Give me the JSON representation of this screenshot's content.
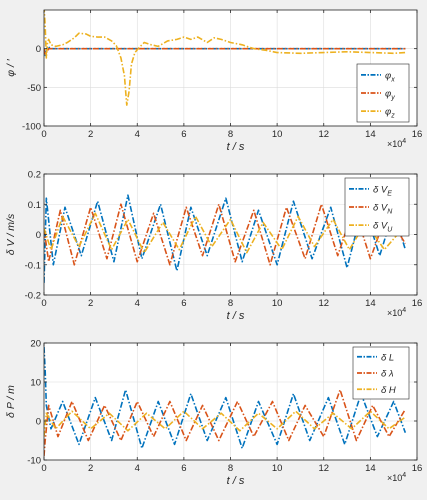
{
  "colors": {
    "figure_bg": "#f0f0f0",
    "axes_bg": "#ffffff",
    "grid": "#dcdcdc",
    "axis": "#262626",
    "series": [
      "#0072bd",
      "#d95319",
      "#edb120"
    ]
  },
  "chart_data": [
    {
      "type": "line",
      "ylabel": "φ / ′",
      "xlabel": "t  / s",
      "x_exponent": "×10",
      "x_exponent_power": "4",
      "xlim": [
        0,
        16
      ],
      "ylim": [
        -100,
        50
      ],
      "xticks": [
        "0",
        "2",
        "4",
        "6",
        "8",
        "10",
        "12",
        "14",
        "16"
      ],
      "yticks": [
        "-100",
        "-50",
        "0"
      ],
      "ytick_values": [
        -100,
        -50,
        0
      ],
      "grid": true,
      "legend_position": "lower-right",
      "series": [
        {
          "name": "φx",
          "label_main": "φ",
          "label_sub": "x",
          "style": "dash-dot",
          "x": [
            0,
            0.05,
            0.15,
            0.3,
            1,
            4,
            8,
            12,
            15.5
          ],
          "y": [
            0,
            -10,
            3,
            0,
            0,
            0,
            0,
            0,
            0
          ]
        },
        {
          "name": "φy",
          "label_main": "φ",
          "label_sub": "y",
          "style": "dash-dot",
          "x": [
            0,
            0.05,
            0.2,
            1,
            4,
            8,
            12,
            15.5
          ],
          "y": [
            0,
            -8,
            0,
            0,
            0,
            0,
            0,
            0
          ]
        },
        {
          "name": "φz",
          "label_main": "φ",
          "label_sub": "z",
          "style": "dash-dot",
          "x": [
            0,
            0.05,
            0.1,
            0.15,
            0.2,
            0.3,
            0.5,
            0.8,
            1,
            1.3,
            1.5,
            1.8,
            2,
            2.3,
            2.6,
            2.9,
            3.1,
            3.3,
            3.45,
            3.55,
            3.65,
            3.75,
            3.9,
            4.1,
            4.3,
            4.6,
            4.9,
            5.3,
            5.7,
            6,
            6.3,
            6.6,
            7,
            7.3,
            7.6,
            8,
            8.5,
            9,
            9.5,
            10,
            11,
            12,
            13,
            14,
            15,
            15.5
          ],
          "y": [
            55,
            30,
            -12,
            8,
            12,
            5,
            3,
            5,
            8,
            14,
            20,
            19,
            16,
            15,
            15,
            10,
            4,
            -12,
            -35,
            -73,
            -55,
            -20,
            -5,
            2,
            8,
            5,
            3,
            10,
            12,
            15,
            12,
            15,
            8,
            14,
            12,
            8,
            5,
            0,
            -2,
            -5,
            -6,
            -5,
            -4,
            -5,
            -6,
            -5
          ]
        }
      ]
    },
    {
      "type": "line",
      "ylabel": "δ V / m/s",
      "xlabel": "t  / s",
      "x_exponent": "×10",
      "x_exponent_power": "4",
      "xlim": [
        0,
        16
      ],
      "ylim": [
        -0.2,
        0.2
      ],
      "xticks": [
        "0",
        "2",
        "4",
        "6",
        "8",
        "10",
        "12",
        "14",
        "16"
      ],
      "yticks": [
        "-0.2",
        "-0.1",
        "0",
        "0.1",
        "0.2"
      ],
      "ytick_values": [
        -0.2,
        -0.1,
        0,
        0.1,
        0.2
      ],
      "grid": true,
      "legend_position": "top-right",
      "series": [
        {
          "name": "δVE",
          "label_main": "δ V",
          "label_sub": "E",
          "style": "dash-dot",
          "x": [
            0,
            0.1,
            0.4,
            0.9,
            1.6,
            2.3,
            3.0,
            3.6,
            4.2,
            5.0,
            5.7,
            6.3,
            7.0,
            7.8,
            8.5,
            9.2,
            10.0,
            10.7,
            11.5,
            12.3,
            13.0,
            13.7,
            14.4,
            15.0,
            15.5
          ],
          "y": [
            -0.16,
            0.12,
            -0.1,
            0.09,
            -0.07,
            0.11,
            -0.09,
            0.13,
            -0.08,
            0.1,
            -0.12,
            0.09,
            -0.07,
            0.12,
            -0.09,
            0.08,
            -0.1,
            0.11,
            -0.08,
            0.09,
            -0.11,
            0.1,
            -0.07,
            0.08,
            -0.05
          ]
        },
        {
          "name": "δVN",
          "label_main": "δ V",
          "label_sub": "N",
          "style": "dash-dot",
          "x": [
            0,
            0.2,
            0.7,
            1.3,
            2.0,
            2.7,
            3.3,
            4.0,
            4.7,
            5.4,
            6.1,
            6.8,
            7.5,
            8.2,
            9.0,
            9.7,
            10.4,
            11.2,
            11.9,
            12.6,
            13.3,
            14.0,
            14.7,
            15.5
          ],
          "y": [
            0.02,
            -0.09,
            0.08,
            -0.1,
            0.09,
            -0.08,
            0.1,
            -0.09,
            0.07,
            -0.1,
            0.09,
            -0.07,
            0.1,
            -0.09,
            0.08,
            -0.1,
            0.09,
            -0.08,
            0.1,
            -0.07,
            0.09,
            -0.08,
            0.07,
            -0.03
          ]
        },
        {
          "name": "δVU",
          "label_main": "δ V",
          "label_sub": "U",
          "style": "dash-dot",
          "x": [
            0,
            0.3,
            0.8,
            1.5,
            2.2,
            2.9,
            3.6,
            4.3,
            5.1,
            5.8,
            6.5,
            7.2,
            8.0,
            8.7,
            9.4,
            10.2,
            10.9,
            11.6,
            12.4,
            13.1,
            13.8,
            14.6,
            15.5
          ],
          "y": [
            0.02,
            -0.05,
            0.06,
            -0.04,
            0.07,
            -0.05,
            0.05,
            -0.06,
            0.04,
            -0.05,
            0.06,
            -0.04,
            0.05,
            -0.06,
            0.04,
            -0.05,
            0.06,
            -0.04,
            0.05,
            -0.05,
            0.04,
            -0.05,
            0.03
          ]
        }
      ]
    },
    {
      "type": "line",
      "ylabel": "δ P / m",
      "xlabel": "t  / s",
      "x_exponent": "×10",
      "x_exponent_power": "4",
      "xlim": [
        0,
        16
      ],
      "ylim": [
        -10,
        20
      ],
      "xticks": [
        "0",
        "2",
        "4",
        "6",
        "8",
        "10",
        "12",
        "14",
        "16"
      ],
      "yticks": [
        "-10",
        "0",
        "10",
        "20"
      ],
      "ytick_values": [
        -10,
        0,
        10,
        20
      ],
      "grid": true,
      "legend_position": "top-right",
      "series": [
        {
          "name": "δL",
          "label_main": "δ L",
          "label_sub": "",
          "style": "dash-dot",
          "x": [
            0,
            0.05,
            0.1,
            0.3,
            0.8,
            1.5,
            2.2,
            2.9,
            3.5,
            4.2,
            4.9,
            5.6,
            6.3,
            7.0,
            7.8,
            8.5,
            9.2,
            10.0,
            10.7,
            11.4,
            12.2,
            12.9,
            13.6,
            14.3,
            15.0,
            15.5
          ],
          "y": [
            19,
            13,
            4,
            -2,
            5,
            -6,
            6,
            -5,
            8,
            -7,
            5,
            -6,
            7,
            -5,
            6,
            -7,
            5,
            -6,
            7,
            -5,
            6,
            -6,
            7,
            -4,
            5,
            -3
          ]
        },
        {
          "name": "δλ",
          "label_main": "δ λ",
          "label_sub": "",
          "style": "dash-dot",
          "x": [
            0,
            0.05,
            0.2,
            0.6,
            1.2,
            1.9,
            2.6,
            3.3,
            4.0,
            4.7,
            5.4,
            6.1,
            6.8,
            7.5,
            8.3,
            9.0,
            9.8,
            10.5,
            11.2,
            12.0,
            12.7,
            13.4,
            14.1,
            14.8,
            15.5
          ],
          "y": [
            -9,
            -5,
            4,
            -4,
            5,
            -5,
            4,
            -5,
            5,
            -4,
            5,
            -5,
            4,
            -5,
            5,
            -4,
            5,
            -5,
            4,
            -4,
            8,
            -5,
            4,
            -4,
            3
          ]
        },
        {
          "name": "δH",
          "label_main": "δ H",
          "label_sub": "",
          "style": "dash-dot",
          "x": [
            0,
            0.1,
            0.5,
            1.2,
            2.0,
            2.8,
            3.6,
            4.4,
            5.2,
            6.0,
            6.8,
            7.6,
            8.4,
            9.2,
            10.0,
            10.8,
            11.6,
            12.4,
            13.2,
            14.0,
            14.8,
            15.5
          ],
          "y": [
            -4,
            2,
            -2,
            2.5,
            -2,
            2,
            -2.5,
            2,
            -2,
            2.5,
            -2,
            2,
            -2.5,
            2,
            -2,
            2.5,
            -2,
            2,
            -2,
            2.5,
            -2,
            1
          ]
        }
      ]
    }
  ]
}
